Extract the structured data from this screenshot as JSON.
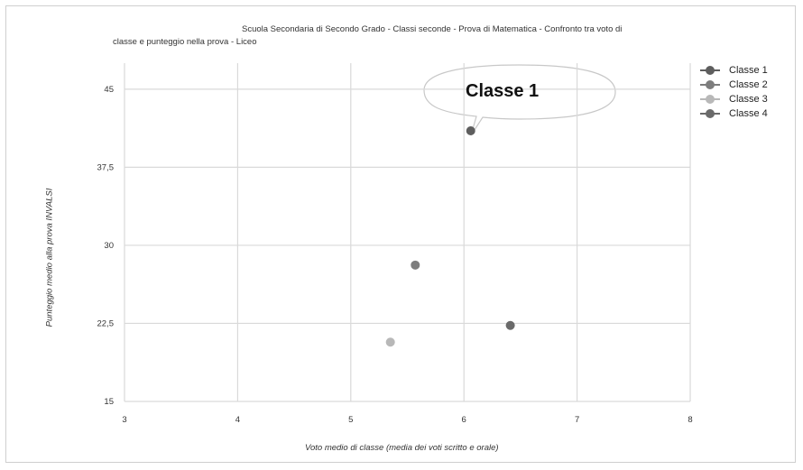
{
  "chart_data": {
    "type": "scatter",
    "title": "Scuola Secondaria di Secondo Grado - Classi seconde - Prova di Matematica - Confronto tra voto di classe e punteggio nella prova - Liceo",
    "title_lines": [
      "Scuola Secondaria di Secondo Grado - Classi seconde - Prova di Matematica - Confronto tra voto di",
      "classe e punteggio nella prova - Liceo"
    ],
    "xlabel": "Voto medio di classe (media dei voti scritto e orale)",
    "ylabel": "Punteggio medio alla prova INVALSI",
    "xlim": [
      3,
      8
    ],
    "ylim": [
      15,
      47.5
    ],
    "x_ticks": [
      "3",
      "4",
      "5",
      "6",
      "7",
      "8"
    ],
    "y_ticks": [
      "15",
      "22,5",
      "30",
      "37,5",
      "45"
    ],
    "x_tick_values": [
      3,
      4,
      5,
      6,
      7,
      8
    ],
    "y_tick_values": [
      15,
      22.5,
      30,
      37.5,
      45
    ],
    "grid": true,
    "legend_position": "top-right",
    "series": [
      {
        "name": "Classe 1",
        "color": "#5e5e5e",
        "points": [
          {
            "x": 6.06,
            "y": 41.0
          }
        ]
      },
      {
        "name": "Classe 2",
        "color": "#7d7d7d",
        "points": [
          {
            "x": 5.57,
            "y": 28.1
          }
        ]
      },
      {
        "name": "Classe 3",
        "color": "#b8b8b8",
        "points": [
          {
            "x": 5.35,
            "y": 20.7
          }
        ]
      },
      {
        "name": "Classe 4",
        "color": "#6a6a6a",
        "points": [
          {
            "x": 6.41,
            "y": 22.3
          }
        ]
      }
    ],
    "annotations": [
      {
        "text": "Classe 1",
        "target_series": "Classe 1"
      }
    ]
  }
}
